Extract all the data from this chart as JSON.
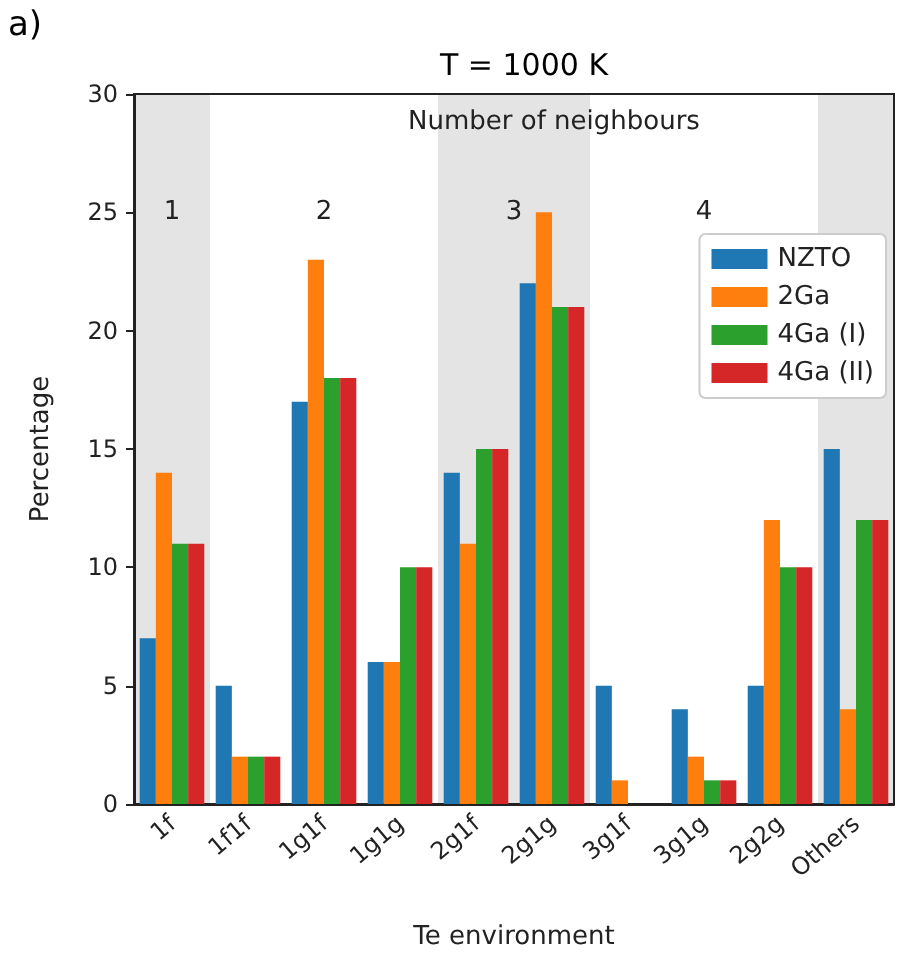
{
  "chart_data": {
    "type": "bar",
    "title": "T = 1000 K",
    "xlabel": "Te environment",
    "ylabel": "Percentage",
    "categories": [
      "1f",
      "1f1f",
      "1g1f",
      "1g1g",
      "2g1f",
      "2g1g",
      "3g1f",
      "3g1g",
      "2g2g",
      "Others"
    ],
    "series": [
      {
        "name": "NZTO",
        "color": "#1f77b4",
        "values": [
          7,
          5,
          17,
          6,
          14,
          22,
          5,
          4,
          5,
          15
        ]
      },
      {
        "name": "2Ga",
        "color": "#ff7f0e",
        "values": [
          14,
          2,
          23,
          6,
          11,
          25,
          1,
          2,
          12,
          4
        ]
      },
      {
        "name": "4Ga (I)",
        "color": "#2ca02c",
        "values": [
          11,
          2,
          18,
          10,
          15,
          21,
          0,
          1,
          10,
          12
        ]
      },
      {
        "name": "4Ga (II)",
        "color": "#d62728",
        "values": [
          11,
          2,
          18,
          10,
          15,
          21,
          0,
          1,
          10,
          12
        ]
      }
    ],
    "ylim": [
      0,
      30
    ],
    "yticks": [
      0,
      5,
      10,
      15,
      20,
      25,
      30
    ],
    "grid": false,
    "legend": "top right",
    "bands": [
      {
        "axis": "x",
        "from": "1f",
        "to": "1f",
        "label": "1",
        "color": "#e4e4e4"
      },
      {
        "axis": "x",
        "from": "2g1f",
        "to": "2g1g",
        "label": "3",
        "color": "#e4e4e4"
      },
      {
        "axis": "x",
        "from": "Others",
        "to": "Others",
        "color": "#e4e4e4"
      }
    ],
    "annotations": [
      "a)",
      "Number of neighbours",
      "2",
      "4"
    ]
  }
}
